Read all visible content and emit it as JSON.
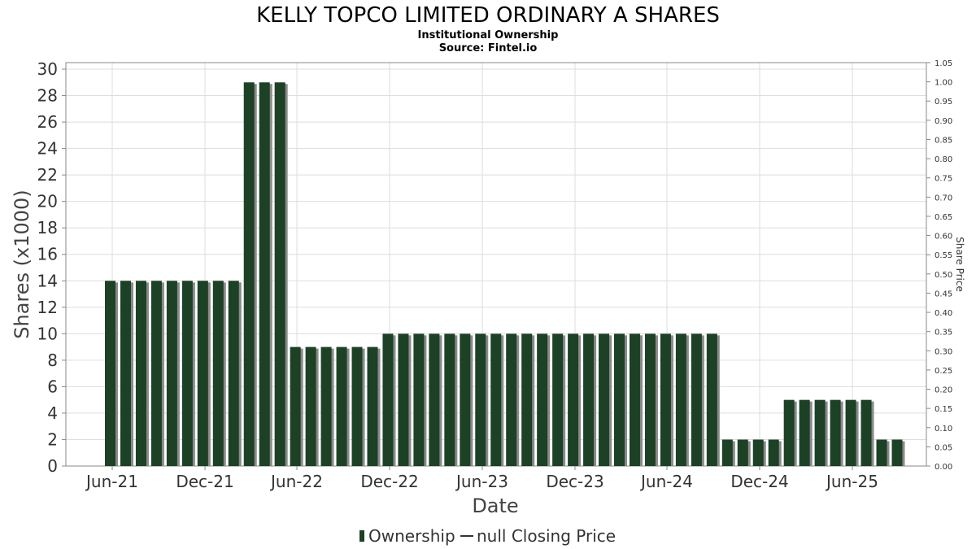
{
  "title": "KELLY TOPCO LIMITED ORDINARY A SHARES",
  "subtitle": "Institutional Ownership",
  "source": "Source: Fintel.io",
  "colors": {
    "bar": "#1c4125",
    "bar_shadow": "#8a8a8a",
    "grid": "#dddddd",
    "frame": "#888888"
  },
  "legend": {
    "ownership": "Ownership",
    "price": "null Closing Price"
  },
  "chart_data": {
    "type": "bar",
    "xlabel": "Date",
    "ylabel": "Shares (x1000)",
    "y2label": "Share Price",
    "ylim": [
      0,
      30.5
    ],
    "y2lim": [
      0,
      1.05
    ],
    "yticks": [
      0,
      2,
      4,
      6,
      8,
      10,
      12,
      14,
      16,
      18,
      20,
      22,
      24,
      26,
      28,
      30
    ],
    "y2ticks": [
      "0.00",
      "0.05",
      "0.10",
      "0.15",
      "0.20",
      "0.25",
      "0.30",
      "0.35",
      "0.40",
      "0.45",
      "0.50",
      "0.55",
      "0.60",
      "0.65",
      "0.70",
      "0.75",
      "0.80",
      "0.85",
      "0.90",
      "0.95",
      "1.00",
      "1.05"
    ],
    "xticks": [
      "Jun-21",
      "Dec-21",
      "Jun-22",
      "Dec-22",
      "Jun-23",
      "Dec-23",
      "Jun-24",
      "Dec-24",
      "Jun-25"
    ],
    "grid": true,
    "legend_position": "bottom",
    "series": [
      {
        "name": "Ownership",
        "values": [
          14,
          14,
          14,
          14,
          14,
          14,
          14,
          14,
          14,
          29,
          29,
          29,
          9,
          9,
          9,
          9,
          9,
          9,
          10,
          10,
          10,
          10,
          10,
          10,
          10,
          10,
          10,
          10,
          10,
          10,
          10,
          10,
          10,
          10,
          10,
          10,
          10,
          10,
          10,
          10,
          2,
          2,
          2,
          2,
          5,
          5,
          5,
          5,
          5,
          5,
          2,
          2
        ]
      }
    ]
  }
}
